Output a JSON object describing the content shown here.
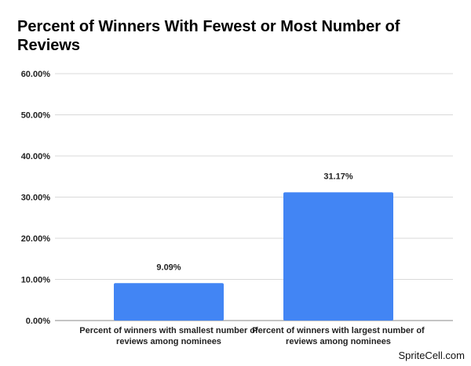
{
  "chart_data": {
    "type": "bar",
    "title": "Percent of Winners With Fewest or Most Number of Reviews",
    "categories": [
      "Percent of winners with smallest number of reviews among nominees",
      "Percent of winners with largest number of reviews among nominees"
    ],
    "values": [
      9.09,
      31.17
    ],
    "data_labels": [
      "9.09%",
      "31.17%"
    ],
    "yticks": [
      "0.00%",
      "10.00%",
      "20.00%",
      "30.00%",
      "40.00%",
      "50.00%",
      "60.00%"
    ],
    "ylim": [
      0,
      60
    ],
    "grid": true,
    "legend": "none",
    "bar_color": "#4285F4"
  },
  "watermark": "SpriteCell.com"
}
